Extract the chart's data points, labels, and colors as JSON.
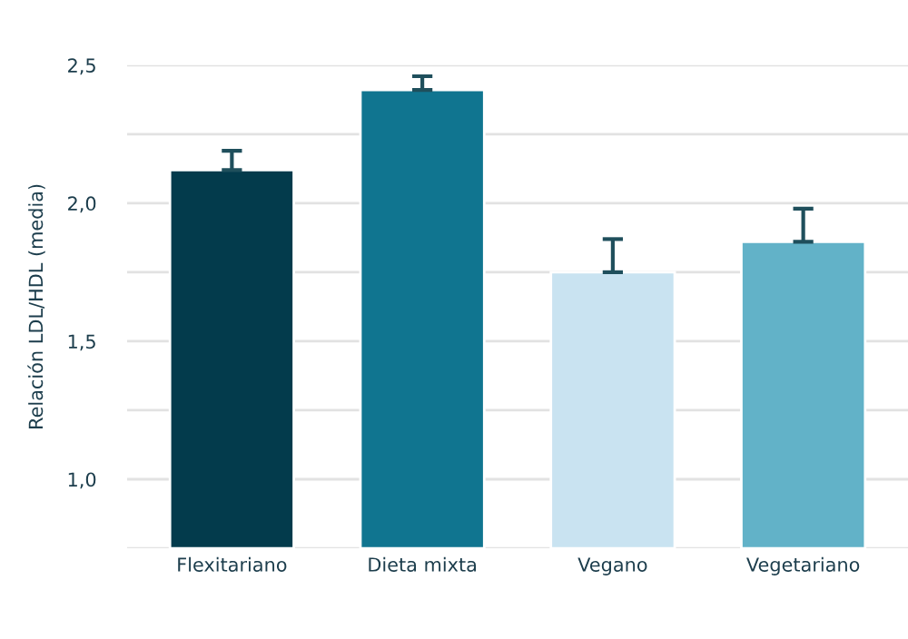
{
  "chart_data": {
    "type": "bar",
    "ylabel": "Relación LDL/HDL (media)",
    "categories": [
      "Flexitariano",
      "Dieta mixta",
      "Vegano",
      "Vegetariano"
    ],
    "values": [
      2.12,
      2.41,
      1.75,
      1.86
    ],
    "colors": [
      "#033b4c",
      "#107590",
      "#c9e3f1",
      "#62b2c8"
    ],
    "errors": [
      [
        2.12,
        2.19
      ],
      [
        2.41,
        2.46
      ],
      [
        1.75,
        1.87
      ],
      [
        1.86,
        1.98
      ]
    ],
    "ylim": [
      0.75,
      2.5
    ],
    "yticks": [
      {
        "value": 0.75,
        "label": null
      },
      {
        "value": 1.0,
        "label": "1,0"
      },
      {
        "value": 1.25,
        "label": null
      },
      {
        "value": 1.5,
        "label": "1,5"
      },
      {
        "value": 1.75,
        "label": null
      },
      {
        "value": 2.0,
        "label": "2,0"
      },
      {
        "value": 2.25,
        "label": null
      },
      {
        "value": 2.5,
        "label": "2,5"
      }
    ],
    "grid": "y"
  }
}
